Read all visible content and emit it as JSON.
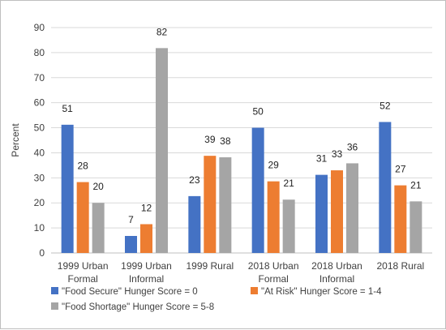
{
  "chart_data": {
    "type": "bar",
    "title": "",
    "xlabel": "",
    "ylabel": "Percent",
    "ylim": [
      0,
      90
    ],
    "yticks": [
      0,
      10,
      20,
      30,
      40,
      50,
      60,
      70,
      80,
      90
    ],
    "grid": true,
    "legend_position": "bottom",
    "categories": [
      [
        "1999 Urban",
        "Formal"
      ],
      [
        "1999 Urban",
        "Informal"
      ],
      [
        "1999 Rural"
      ],
      [
        "2018 Urban",
        "Formal"
      ],
      [
        "2018 Urban",
        "Informal"
      ],
      [
        "2018 Rural"
      ]
    ],
    "series": [
      {
        "name": "\"Food Secure\" Hunger Score = 0",
        "color": "#4472c4",
        "values": [
          51.2,
          6.8,
          22.7,
          50.0,
          31.2,
          52.3
        ],
        "labels": [
          "51",
          "7",
          "23",
          "50",
          "31",
          "52"
        ]
      },
      {
        "name": "\"At Risk\" Hunger Score = 1-4",
        "color": "#ed7d31",
        "values": [
          28.3,
          11.5,
          38.8,
          28.6,
          33.0,
          27.0
        ],
        "labels": [
          "28",
          "12",
          "39",
          "29",
          "33",
          "27"
        ]
      },
      {
        "name": "\"Food Shortage\" Hunger Score = 5-8",
        "color": "#a5a5a5",
        "values": [
          20.0,
          81.8,
          38.2,
          21.3,
          35.8,
          20.6
        ],
        "labels": [
          "20",
          "82",
          "38",
          "21",
          "36",
          "21"
        ]
      }
    ],
    "colors": {
      "grid": "#d9d9d9",
      "axis": "#bfbfbf"
    }
  }
}
